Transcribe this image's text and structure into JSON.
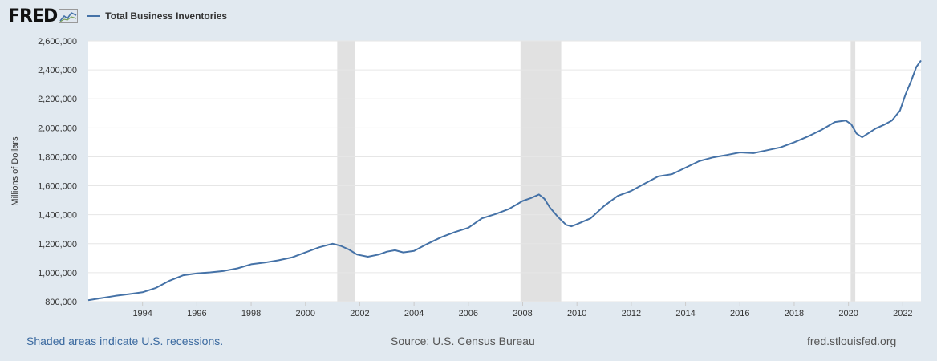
{
  "header": {
    "logo_text": "FRED"
  },
  "footer": {
    "recession_note": "Shaded areas indicate U.S. recessions.",
    "source": "Source: U.S. Census Bureau",
    "site": "fred.stlouisfed.org"
  },
  "colors": {
    "line": "#4572a7",
    "recession": "#e1e1e1",
    "grid": "#e6e6e6",
    "background": "#e1e9f0"
  },
  "chart_data": {
    "type": "line",
    "title": "",
    "xlabel": "",
    "ylabel": "Millions of Dollars",
    "xlim": [
      1992.0,
      2022.67
    ],
    "ylim": [
      800000,
      2600000
    ],
    "y_ticks": [
      800000,
      1000000,
      1200000,
      1400000,
      1600000,
      1800000,
      2000000,
      2200000,
      2400000,
      2600000
    ],
    "y_tick_labels": [
      "800,000",
      "1,000,000",
      "1,200,000",
      "1,400,000",
      "1,600,000",
      "1,800,000",
      "2,000,000",
      "2,200,000",
      "2,400,000",
      "2,600,000"
    ],
    "x_ticks": [
      1994,
      1996,
      1998,
      2000,
      2002,
      2004,
      2006,
      2008,
      2010,
      2012,
      2014,
      2016,
      2018,
      2020,
      2022
    ],
    "x_tick_labels": [
      "1994",
      "1996",
      "1998",
      "2000",
      "2002",
      "2004",
      "2006",
      "2008",
      "2010",
      "2012",
      "2014",
      "2016",
      "2018",
      "2020",
      "2022"
    ],
    "grid": true,
    "legend": "top-left",
    "recessions": [
      [
        2001.17,
        2001.83
      ],
      [
        2007.92,
        2009.42
      ],
      [
        2020.08,
        2020.25
      ]
    ],
    "series": [
      {
        "name": "Total Business Inventories",
        "x": [
          1992.0,
          1992.5,
          1993.0,
          1993.5,
          1994.0,
          1994.5,
          1995.0,
          1995.5,
          1996.0,
          1996.5,
          1997.0,
          1997.5,
          1998.0,
          1998.5,
          1999.0,
          1999.5,
          2000.0,
          2000.5,
          2001.0,
          2001.3,
          2001.6,
          2001.9,
          2002.3,
          2002.7,
          2003.0,
          2003.3,
          2003.6,
          2004.0,
          2004.5,
          2005.0,
          2005.5,
          2006.0,
          2006.5,
          2007.0,
          2007.5,
          2008.0,
          2008.3,
          2008.6,
          2008.8,
          2009.0,
          2009.3,
          2009.6,
          2009.8,
          2010.0,
          2010.5,
          2011.0,
          2011.5,
          2012.0,
          2012.5,
          2013.0,
          2013.5,
          2014.0,
          2014.5,
          2015.0,
          2015.5,
          2016.0,
          2016.5,
          2017.0,
          2017.5,
          2018.0,
          2018.5,
          2019.0,
          2019.5,
          2019.9,
          2020.1,
          2020.3,
          2020.5,
          2021.0,
          2021.3,
          2021.6,
          2021.9,
          2022.1,
          2022.3,
          2022.5,
          2022.67
        ],
        "values": [
          810000,
          825000,
          840000,
          852000,
          865000,
          895000,
          945000,
          982000,
          995000,
          1002000,
          1012000,
          1030000,
          1058000,
          1070000,
          1085000,
          1105000,
          1140000,
          1175000,
          1200000,
          1185000,
          1160000,
          1125000,
          1110000,
          1125000,
          1145000,
          1155000,
          1140000,
          1150000,
          1200000,
          1245000,
          1280000,
          1310000,
          1375000,
          1405000,
          1440000,
          1495000,
          1515000,
          1540000,
          1510000,
          1450000,
          1385000,
          1330000,
          1320000,
          1335000,
          1375000,
          1460000,
          1530000,
          1565000,
          1615000,
          1665000,
          1680000,
          1725000,
          1770000,
          1795000,
          1812000,
          1830000,
          1825000,
          1845000,
          1865000,
          1900000,
          1940000,
          1985000,
          2040000,
          2050000,
          2025000,
          1960000,
          1935000,
          1995000,
          2020000,
          2050000,
          2120000,
          2230000,
          2320000,
          2420000,
          2465000
        ]
      }
    ]
  }
}
